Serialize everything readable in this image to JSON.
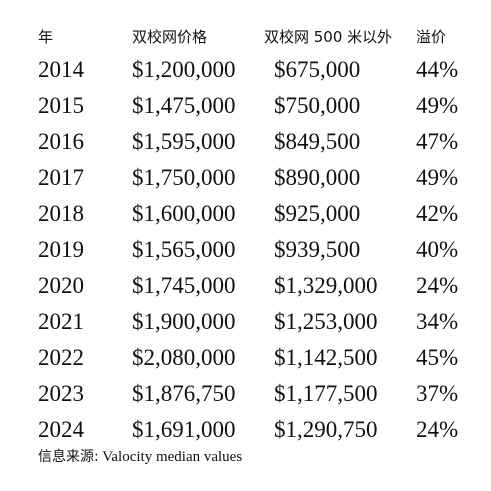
{
  "header": {
    "col_year": "年",
    "col_double_school": "双校网价格",
    "col_outside": "双校网 500 米以外",
    "col_premium": "溢价"
  },
  "rows": [
    {
      "year": "2014",
      "double_school": "$1,200,000",
      "outside": "$675,000",
      "premium": "44%"
    },
    {
      "year": "2015",
      "double_school": "$1,475,000",
      "outside": "$750,000",
      "premium": "49%"
    },
    {
      "year": "2016",
      "double_school": "$1,595,000",
      "outside": "$849,500",
      "premium": "47%"
    },
    {
      "year": "2017",
      "double_school": "$1,750,000",
      "outside": "$890,000",
      "premium": "49%"
    },
    {
      "year": "2018",
      "double_school": "$1,600,000",
      "outside": "$925,000",
      "premium": "42%"
    },
    {
      "year": "2019",
      "double_school": "$1,565,000",
      "outside": "$939,500",
      "premium": "40%"
    },
    {
      "year": "2020",
      "double_school": "$1,745,000",
      "outside": "$1,329,000",
      "premium": "24%"
    },
    {
      "year": "2021",
      "double_school": "$1,900,000",
      "outside": "$1,253,000",
      "premium": "34%"
    },
    {
      "year": "2022",
      "double_school": "$2,080,000",
      "outside": "$1,142,500",
      "premium": "45%"
    },
    {
      "year": "2023",
      "double_school": "$1,876,750",
      "outside": "$1,177,500",
      "premium": "37%"
    },
    {
      "year": "2024",
      "double_school": "$1,691,000",
      "outside": "$1,290,750",
      "premium": "24%"
    }
  ],
  "source": {
    "label": "信息来源:",
    "text": "Valocity median values"
  },
  "chart_data": {
    "type": "table",
    "columns": [
      "年",
      "双校网价格",
      "双校网 500 米以外",
      "溢价"
    ],
    "rows": [
      [
        "2014",
        "$1,200,000",
        "$675,000",
        "44%"
      ],
      [
        "2015",
        "$1,475,000",
        "$750,000",
        "49%"
      ],
      [
        "2016",
        "$1,595,000",
        "$849,500",
        "47%"
      ],
      [
        "2017",
        "$1,750,000",
        "$890,000",
        "49%"
      ],
      [
        "2018",
        "$1,600,000",
        "$925,000",
        "42%"
      ],
      [
        "2019",
        "$1,565,000",
        "$939,500",
        "40%"
      ],
      [
        "2020",
        "$1,745,000",
        "$1,329,000",
        "24%"
      ],
      [
        "2021",
        "$1,900,000",
        "$1,253,000",
        "34%"
      ],
      [
        "2022",
        "$2,080,000",
        "$1,142,500",
        "45%"
      ],
      [
        "2023",
        "$1,876,750",
        "$1,177,500",
        "37%"
      ],
      [
        "2024",
        "$1,691,000",
        "$1,290,750",
        "24%"
      ]
    ]
  }
}
